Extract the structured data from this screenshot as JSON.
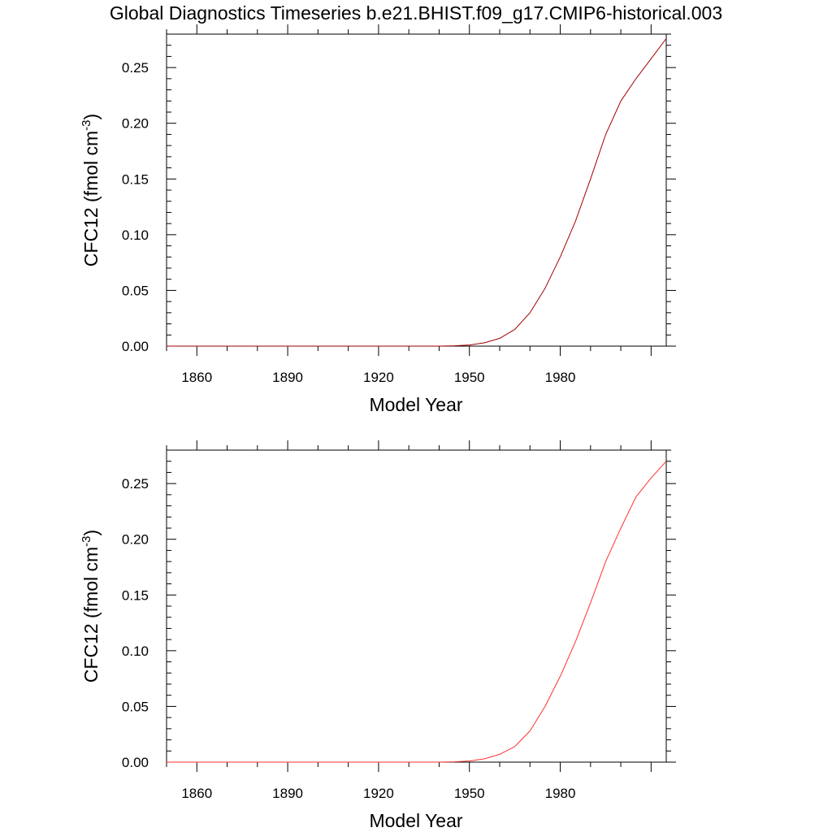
{
  "figure": {
    "title": "Global Diagnostics Timeseries b.e21.BHIST.f09_g17.CMIP6-historical.003"
  },
  "chart_data": [
    {
      "type": "line",
      "title": "",
      "xlabel": "Model Year",
      "ylabel": "CFC12 (fmol cm",
      "ylabel_sup": "-3",
      "ylabel_tail": ")",
      "xlim": [
        1850,
        2015
      ],
      "ylim": [
        0,
        0.28
      ],
      "x_ticks": [
        "1860",
        "1890",
        "1920",
        "1950",
        "1980"
      ],
      "y_ticks": [
        "0.00",
        "0.05",
        "0.10",
        "0.15",
        "0.20",
        "0.25"
      ],
      "grid": false,
      "series": [
        {
          "color": "#a00000",
          "x": [
            1850,
            1900,
            1930,
            1940,
            1945,
            1950,
            1955,
            1960,
            1965,
            1970,
            1975,
            1980,
            1985,
            1990,
            1995,
            2000,
            2005,
            2010,
            2015
          ],
          "y": [
            0,
            0,
            0,
            0,
            0.0003,
            0.001,
            0.003,
            0.007,
            0.015,
            0.03,
            0.052,
            0.08,
            0.112,
            0.15,
            0.19,
            0.22,
            0.24,
            0.258,
            0.276
          ]
        }
      ]
    },
    {
      "type": "line",
      "title": "",
      "xlabel": "Model Year",
      "ylabel": "CFC12 (fmol cm",
      "ylabel_sup": "-3",
      "ylabel_tail": ")",
      "xlim": [
        1850,
        2015
      ],
      "ylim": [
        0,
        0.28
      ],
      "x_ticks": [
        "1860",
        "1890",
        "1920",
        "1950",
        "1980"
      ],
      "y_ticks": [
        "0.00",
        "0.05",
        "0.10",
        "0.15",
        "0.20",
        "0.25"
      ],
      "grid": false,
      "series": [
        {
          "color": "#ff3030",
          "x": [
            1850,
            1900,
            1930,
            1940,
            1945,
            1950,
            1955,
            1960,
            1965,
            1970,
            1975,
            1980,
            1985,
            1990,
            1995,
            2000,
            2005,
            2010,
            2015
          ],
          "y": [
            0,
            0,
            0,
            0,
            0.0003,
            0.001,
            0.003,
            0.007,
            0.014,
            0.028,
            0.05,
            0.077,
            0.108,
            0.143,
            0.18,
            0.21,
            0.238,
            0.255,
            0.27
          ]
        }
      ]
    }
  ]
}
